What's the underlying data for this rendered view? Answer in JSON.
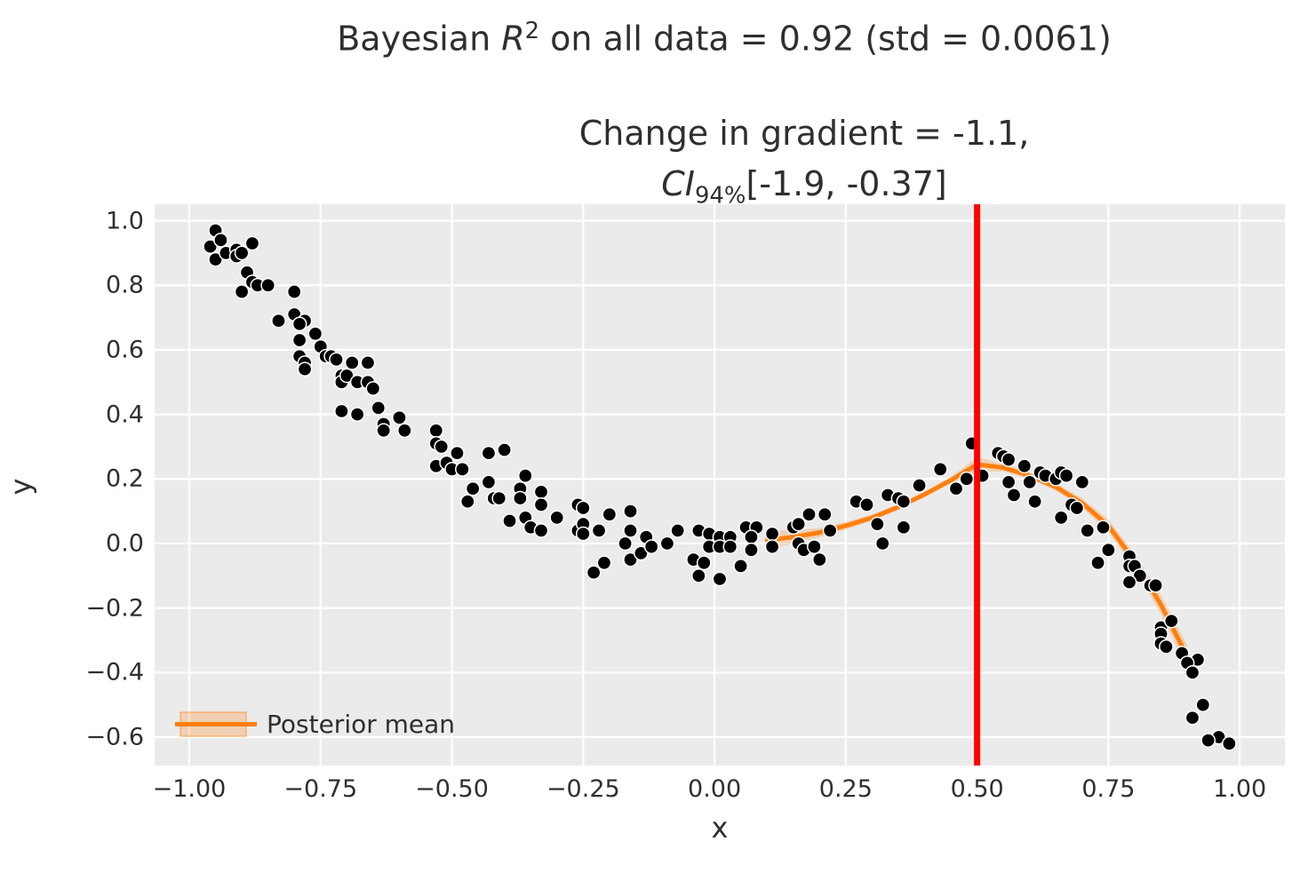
{
  "titles": {
    "main_prefix": "Bayesian ",
    "main_var": "R",
    "main_sup": "2",
    "main_rest": " on all data = 0.92 (std = 0.0061)",
    "sub_line1": "Change in gradient = -1.1,",
    "ci_var": "CI",
    "ci_sub": "94%",
    "ci_rest": "[-1.9, -0.37]"
  },
  "legend": {
    "label": "Posterior mean",
    "position": "lower left"
  },
  "colors": {
    "background": "#ffffff",
    "panel": "#ebebeb",
    "grid": "#ffffff",
    "text": "#2f2f2f",
    "scatter": "#000000",
    "scatter_edge": "#ffffff",
    "line": "#ff7f0e",
    "band": "rgba(255,127,14,0.25)",
    "band_edge": "rgba(255,127,14,0.5)",
    "vline": "#ff0000"
  },
  "chart_data": {
    "type": "scatter",
    "title": "Bayesian R² on all data = 0.92 (std = 0.0061)",
    "subtitle": "Change in gradient = -1.1, CI94%[-1.9, -0.37]",
    "xlabel": "x",
    "ylabel": "y",
    "grid": true,
    "xlim": [
      -1.066,
      1.086
    ],
    "ylim": [
      -0.688,
      1.051
    ],
    "x_ticks": {
      "values": [
        -1.0,
        -0.75,
        -0.5,
        -0.25,
        0.0,
        0.25,
        0.5,
        0.75,
        1.0
      ],
      "labels": [
        "−1.00",
        "−0.75",
        "−0.50",
        "−0.25",
        "0.00",
        "0.25",
        "0.50",
        "0.75",
        "1.00"
      ]
    },
    "y_ticks": {
      "values": [
        1.0,
        0.8,
        0.6,
        0.4,
        0.2,
        0.0,
        -0.2,
        -0.4,
        -0.6
      ],
      "labels": [
        "1.0",
        "0.8",
        "0.6",
        "0.4",
        "0.2",
        "0.0",
        "−0.2",
        "−0.4",
        "−0.6"
      ]
    },
    "vline": {
      "x": 0.5,
      "color": "#ff0000"
    },
    "posterior_mean": {
      "name": "Posterior mean",
      "color": "#ff7f0e",
      "x": [
        0.1,
        0.15,
        0.2,
        0.25,
        0.3,
        0.35,
        0.4,
        0.45,
        0.5,
        0.55,
        0.6,
        0.65,
        0.7,
        0.75,
        0.8,
        0.85,
        0.9
      ],
      "y": [
        0.01,
        0.02,
        0.034,
        0.055,
        0.08,
        0.113,
        0.152,
        0.196,
        0.245,
        0.235,
        0.21,
        0.175,
        0.125,
        0.055,
        -0.055,
        -0.19,
        -0.35
      ],
      "band_upper": [
        0.04,
        0.04,
        0.048,
        0.067,
        0.09,
        0.122,
        0.16,
        0.206,
        0.267,
        0.247,
        0.22,
        0.187,
        0.14,
        0.074,
        -0.031,
        -0.16,
        -0.314
      ],
      "band_lower": [
        -0.02,
        0.0,
        0.02,
        0.043,
        0.07,
        0.104,
        0.144,
        0.186,
        0.223,
        0.223,
        0.2,
        0.163,
        0.11,
        0.036,
        -0.079,
        -0.22,
        -0.386
      ]
    },
    "scatter": {
      "color": "#000000",
      "points": [
        [
          -0.95,
          0.97
        ],
        [
          -0.96,
          0.92
        ],
        [
          -0.94,
          0.94
        ],
        [
          -0.95,
          0.88
        ],
        [
          -0.93,
          0.9
        ],
        [
          -0.91,
          0.91
        ],
        [
          -0.91,
          0.89
        ],
        [
          -0.88,
          0.93
        ],
        [
          -0.9,
          0.9
        ],
        [
          -0.89,
          0.84
        ],
        [
          -0.88,
          0.81
        ],
        [
          -0.87,
          0.8
        ],
        [
          -0.85,
          0.8
        ],
        [
          -0.9,
          0.78
        ],
        [
          -0.8,
          0.78
        ],
        [
          -0.83,
          0.69
        ],
        [
          -0.8,
          0.71
        ],
        [
          -0.78,
          0.69
        ],
        [
          -0.79,
          0.68
        ],
        [
          -0.76,
          0.65
        ],
        [
          -0.79,
          0.63
        ],
        [
          -0.75,
          0.61
        ],
        [
          -0.79,
          0.58
        ],
        [
          -0.74,
          0.58
        ],
        [
          -0.78,
          0.56
        ],
        [
          -0.78,
          0.54
        ],
        [
          -0.73,
          0.58
        ],
        [
          -0.72,
          0.57
        ],
        [
          -0.71,
          0.52
        ],
        [
          -0.71,
          0.5
        ],
        [
          -0.71,
          0.41
        ],
        [
          -0.69,
          0.56
        ],
        [
          -0.66,
          0.56
        ],
        [
          -0.7,
          0.52
        ],
        [
          -0.68,
          0.5
        ],
        [
          -0.66,
          0.5
        ],
        [
          -0.65,
          0.48
        ],
        [
          -0.64,
          0.42
        ],
        [
          -0.68,
          0.4
        ],
        [
          -0.63,
          0.37
        ],
        [
          -0.63,
          0.35
        ],
        [
          -0.6,
          0.39
        ],
        [
          -0.59,
          0.35
        ],
        [
          -0.53,
          0.35
        ],
        [
          -0.53,
          0.31
        ],
        [
          -0.52,
          0.3
        ],
        [
          -0.49,
          0.28
        ],
        [
          -0.53,
          0.24
        ],
        [
          -0.51,
          0.25
        ],
        [
          -0.5,
          0.23
        ],
        [
          -0.48,
          0.23
        ],
        [
          -0.43,
          0.28
        ],
        [
          -0.4,
          0.29
        ],
        [
          -0.46,
          0.17
        ],
        [
          -0.43,
          0.19
        ],
        [
          -0.42,
          0.14
        ],
        [
          -0.41,
          0.14
        ],
        [
          -0.47,
          0.13
        ],
        [
          -0.37,
          0.17
        ],
        [
          -0.37,
          0.14
        ],
        [
          -0.36,
          0.21
        ],
        [
          -0.39,
          0.07
        ],
        [
          -0.36,
          0.08
        ],
        [
          -0.35,
          0.05
        ],
        [
          -0.33,
          0.16
        ],
        [
          -0.33,
          0.12
        ],
        [
          -0.3,
          0.08
        ],
        [
          -0.33,
          0.04
        ],
        [
          -0.26,
          0.12
        ],
        [
          -0.25,
          0.11
        ],
        [
          -0.26,
          0.04
        ],
        [
          -0.25,
          0.06
        ],
        [
          -0.25,
          0.03
        ],
        [
          -0.22,
          0.04
        ],
        [
          -0.2,
          0.09
        ],
        [
          -0.23,
          -0.09
        ],
        [
          -0.21,
          -0.06
        ],
        [
          -0.16,
          0.1
        ],
        [
          -0.16,
          0.04
        ],
        [
          -0.17,
          0.0
        ],
        [
          -0.16,
          -0.05
        ],
        [
          -0.14,
          -0.03
        ],
        [
          -0.13,
          0.02
        ],
        [
          -0.12,
          -0.01
        ],
        [
          -0.09,
          0.0
        ],
        [
          -0.07,
          0.04
        ],
        [
          -0.03,
          0.04
        ],
        [
          -0.01,
          0.03
        ],
        [
          -0.01,
          -0.01
        ],
        [
          0.01,
          0.02
        ],
        [
          0.01,
          -0.01
        ],
        [
          -0.04,
          -0.05
        ],
        [
          -0.02,
          -0.06
        ],
        [
          -0.03,
          -0.1
        ],
        [
          0.01,
          -0.11
        ],
        [
          0.03,
          0.02
        ],
        [
          0.03,
          -0.01
        ],
        [
          0.06,
          0.05
        ],
        [
          0.08,
          0.05
        ],
        [
          0.07,
          0.02
        ],
        [
          0.05,
          -0.07
        ],
        [
          0.07,
          -0.02
        ],
        [
          0.11,
          0.03
        ],
        [
          0.11,
          -0.01
        ],
        [
          0.15,
          0.05
        ],
        [
          0.16,
          0.06
        ],
        [
          0.16,
          0.0
        ],
        [
          0.17,
          -0.02
        ],
        [
          0.18,
          0.09
        ],
        [
          0.19,
          -0.01
        ],
        [
          0.21,
          0.09
        ],
        [
          0.22,
          0.04
        ],
        [
          0.2,
          -0.05
        ],
        [
          0.27,
          0.13
        ],
        [
          0.29,
          0.12
        ],
        [
          0.33,
          0.15
        ],
        [
          0.35,
          0.14
        ],
        [
          0.36,
          0.13
        ],
        [
          0.31,
          0.06
        ],
        [
          0.32,
          0.0
        ],
        [
          0.36,
          0.05
        ],
        [
          0.39,
          0.18
        ],
        [
          0.43,
          0.23
        ],
        [
          0.46,
          0.17
        ],
        [
          0.48,
          0.2
        ],
        [
          0.49,
          0.31
        ],
        [
          0.51,
          0.21
        ],
        [
          0.54,
          0.28
        ],
        [
          0.55,
          0.27
        ],
        [
          0.56,
          0.26
        ],
        [
          0.56,
          0.19
        ],
        [
          0.57,
          0.15
        ],
        [
          0.59,
          0.24
        ],
        [
          0.6,
          0.19
        ],
        [
          0.61,
          0.13
        ],
        [
          0.62,
          0.22
        ],
        [
          0.63,
          0.21
        ],
        [
          0.65,
          0.2
        ],
        [
          0.66,
          0.22
        ],
        [
          0.67,
          0.21
        ],
        [
          0.66,
          0.08
        ],
        [
          0.68,
          0.12
        ],
        [
          0.69,
          0.11
        ],
        [
          0.7,
          0.19
        ],
        [
          0.71,
          0.04
        ],
        [
          0.73,
          -0.06
        ],
        [
          0.74,
          0.05
        ],
        [
          0.75,
          -0.02
        ],
        [
          0.79,
          -0.04
        ],
        [
          0.79,
          -0.07
        ],
        [
          0.8,
          -0.07
        ],
        [
          0.81,
          -0.1
        ],
        [
          0.79,
          -0.12
        ],
        [
          0.83,
          -0.13
        ],
        [
          0.84,
          -0.13
        ],
        [
          0.85,
          -0.26
        ],
        [
          0.87,
          -0.24
        ],
        [
          0.85,
          -0.28
        ],
        [
          0.85,
          -0.31
        ],
        [
          0.86,
          -0.32
        ],
        [
          0.89,
          -0.34
        ],
        [
          0.92,
          -0.36
        ],
        [
          0.9,
          -0.37
        ],
        [
          0.91,
          -0.4
        ],
        [
          0.93,
          -0.5
        ],
        [
          0.91,
          -0.54
        ],
        [
          0.96,
          -0.6
        ],
        [
          0.94,
          -0.61
        ],
        [
          0.98,
          -0.62
        ]
      ]
    }
  }
}
